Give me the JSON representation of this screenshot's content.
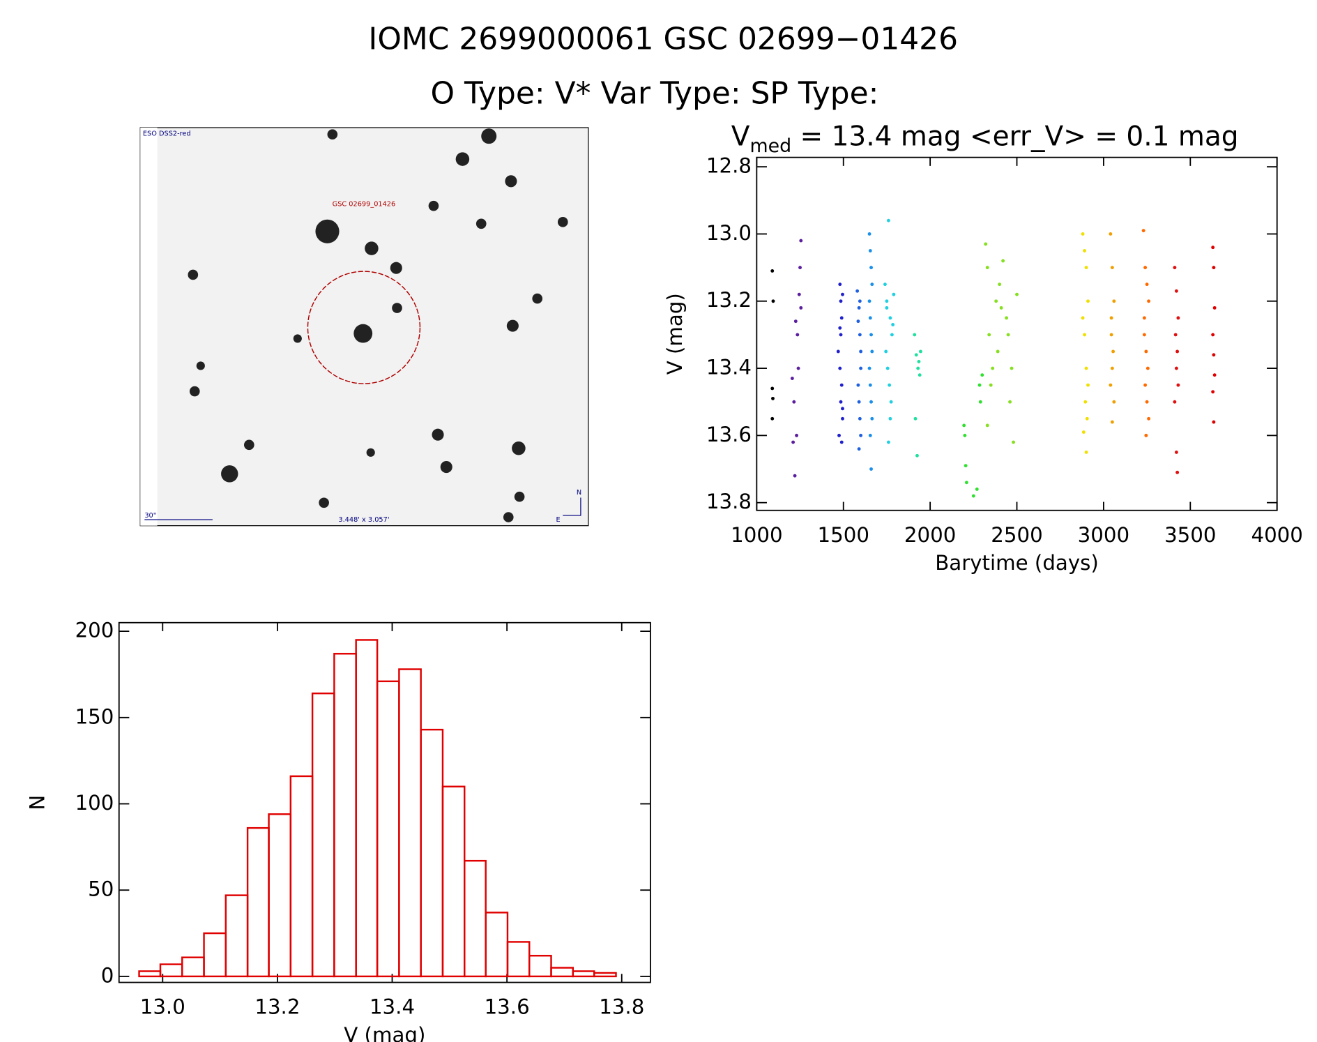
{
  "header": {
    "line1": "IOMC 2699000061    GSC 02699−01426",
    "line2": "O Type: V*  Var Type:   SP Type:"
  },
  "finder": {
    "survey": "ESO DSS2-red",
    "target": "GSC 02699_01426",
    "scale": "30\"",
    "size": "3.448' x 3.057'",
    "north": "N",
    "east": "E"
  },
  "chart_data": [
    {
      "type": "scatter",
      "title": {
        "main": "V",
        "sub": "med",
        "rest": " = 13.4 mag <err_V> = 0.1 mag"
      },
      "x_label": "Barytime (days)",
      "y_label": "V (mag)",
      "xlim": [
        1000,
        4000
      ],
      "xticks": [
        1000,
        1500,
        2000,
        2500,
        3000,
        3500,
        4000
      ],
      "ylim": [
        13.823,
        12.772
      ],
      "yticks": [
        12.8,
        {
          "value": 13,
          "label": "13.0"
        },
        13.2,
        13.4,
        13.6,
        13.8
      ],
      "series": [
        {
          "color": "#000000",
          "x": [
            1090,
            1095,
            1090,
            1093,
            1090
          ],
          "values": [
            13.11,
            13.2,
            13.46,
            13.49,
            13.55
          ]
        },
        {
          "color": "#5b1e9e",
          "x": [
            1205,
            1215,
            1225,
            1235,
            1245,
            1255,
            1210,
            1230,
            1250,
            1220,
            1240,
            1255
          ],
          "values": [
            13.43,
            13.5,
            13.26,
            13.3,
            13.18,
            13.02,
            13.62,
            13.6,
            13.1,
            13.72,
            13.4,
            13.22
          ]
        },
        {
          "color": "#2020cc",
          "x": [
            1470,
            1480,
            1485,
            1490,
            1495,
            1480,
            1490,
            1485,
            1495,
            1475,
            1490,
            1485,
            1480,
            1495
          ],
          "values": [
            13.35,
            13.15,
            13.2,
            13.25,
            13.18,
            13.4,
            13.45,
            13.5,
            13.55,
            13.6,
            13.62,
            13.3,
            13.28,
            13.52
          ]
        },
        {
          "color": "#1f60e0",
          "x": [
            1580,
            1590,
            1595,
            1600,
            1585,
            1590,
            1595,
            1600,
            1590,
            1585,
            1595,
            1600
          ],
          "values": [
            13.17,
            13.22,
            13.3,
            13.4,
            13.45,
            13.5,
            13.55,
            13.6,
            13.64,
            13.26,
            13.2,
            13.35
          ]
        },
        {
          "color": "#1a90ea",
          "x": [
            1650,
            1655,
            1660,
            1665,
            1650,
            1655,
            1660,
            1665,
            1650,
            1655,
            1660,
            1665,
            1655,
            1660
          ],
          "values": [
            13.0,
            13.05,
            13.1,
            13.15,
            13.2,
            13.25,
            13.3,
            13.35,
            13.4,
            13.45,
            13.5,
            13.55,
            13.6,
            13.7
          ]
        },
        {
          "color": "#20d0e0",
          "x": [
            1740,
            1750,
            1760,
            1770,
            1780,
            1790,
            1745,
            1755,
            1765,
            1775,
            1785,
            1770,
            1760,
            1750
          ],
          "values": [
            13.15,
            13.2,
            12.96,
            13.25,
            13.3,
            13.18,
            13.35,
            13.4,
            13.45,
            13.5,
            13.27,
            13.55,
            13.62,
            13.22
          ]
        },
        {
          "color": "#20e0a0",
          "x": [
            1910,
            1920,
            1930,
            1940,
            1915,
            1935,
            1925,
            1945
          ],
          "values": [
            13.3,
            13.36,
            13.4,
            13.42,
            13.55,
            13.38,
            13.66,
            13.35
          ]
        },
        {
          "color": "#30e030",
          "x": [
            2195,
            2200,
            2205,
            2210,
            2250,
            2270,
            2290,
            2285,
            2300
          ],
          "values": [
            13.57,
            13.6,
            13.69,
            13.74,
            13.78,
            13.76,
            13.5,
            13.45,
            13.42
          ]
        },
        {
          "color": "#86e020",
          "x": [
            2320,
            2330,
            2340,
            2360,
            2380,
            2400,
            2420,
            2440,
            2460,
            2480,
            2330,
            2350,
            2390,
            2410,
            2450,
            2470,
            2500
          ],
          "values": [
            13.03,
            13.1,
            13.3,
            13.4,
            13.2,
            13.15,
            13.08,
            13.25,
            13.5,
            13.62,
            13.57,
            13.45,
            13.35,
            13.22,
            13.3,
            13.4,
            13.18
          ]
        },
        {
          "color": "#f0e000",
          "x": [
            2880,
            2890,
            2900,
            2910,
            2880,
            2890,
            2900,
            2910,
            2895,
            2905,
            2885,
            2900
          ],
          "values": [
            13.0,
            13.05,
            13.1,
            13.2,
            13.25,
            13.3,
            13.4,
            13.45,
            13.5,
            13.55,
            13.59,
            13.65
          ]
        },
        {
          "color": "#f0a000",
          "x": [
            3040,
            3050,
            3060,
            3045,
            3055,
            3050,
            3040,
            3060,
            3050,
            3045
          ],
          "values": [
            13.0,
            13.1,
            13.2,
            13.3,
            13.35,
            13.4,
            13.45,
            13.5,
            13.56,
            13.25
          ]
        },
        {
          "color": "#ff6a00",
          "x": [
            3230,
            3240,
            3250,
            3260,
            3235,
            3245,
            3255,
            3240,
            3250,
            3260,
            3245,
            3235
          ],
          "values": [
            12.99,
            13.1,
            13.15,
            13.2,
            13.3,
            13.35,
            13.4,
            13.45,
            13.5,
            13.55,
            13.6,
            13.25
          ]
        },
        {
          "color": "#e01010",
          "x": [
            3410,
            3420,
            3430,
            3415,
            3425,
            3420,
            3430,
            3410,
            3420,
            3425
          ],
          "values": [
            13.1,
            13.17,
            13.25,
            13.3,
            13.35,
            13.4,
            13.45,
            13.5,
            13.65,
            13.71
          ]
        },
        {
          "color": "#e00000",
          "x": [
            3630,
            3635,
            3640,
            3630,
            3635,
            3640,
            3630,
            3635
          ],
          "values": [
            13.04,
            13.1,
            13.22,
            13.3,
            13.36,
            13.42,
            13.47,
            13.56
          ]
        }
      ]
    },
    {
      "type": "histogram",
      "x_label": "V (mag)",
      "y_label": "N",
      "color": "#e00000",
      "xlim": [
        12.924,
        13.85
      ],
      "xticks": [
        {
          "value": 13,
          "label": "13.0"
        },
        13.2,
        13.4,
        13.6,
        13.8
      ],
      "ylim": [
        -3.5,
        205
      ],
      "yticks": [
        0,
        50,
        100,
        150,
        200
      ],
      "bins": [
        12.959,
        12.996,
        13.034,
        13.072,
        13.11,
        13.148,
        13.185,
        13.223,
        13.261,
        13.299,
        13.337,
        13.374,
        13.412,
        13.45,
        13.488,
        13.526,
        13.563,
        13.601,
        13.639,
        13.677,
        13.715,
        13.752,
        13.79
      ],
      "values": [
        3,
        7,
        11,
        25,
        47,
        86,
        94,
        116,
        164,
        187,
        195,
        171,
        178,
        143,
        110,
        67,
        37,
        20,
        12,
        5,
        3,
        2
      ]
    }
  ]
}
